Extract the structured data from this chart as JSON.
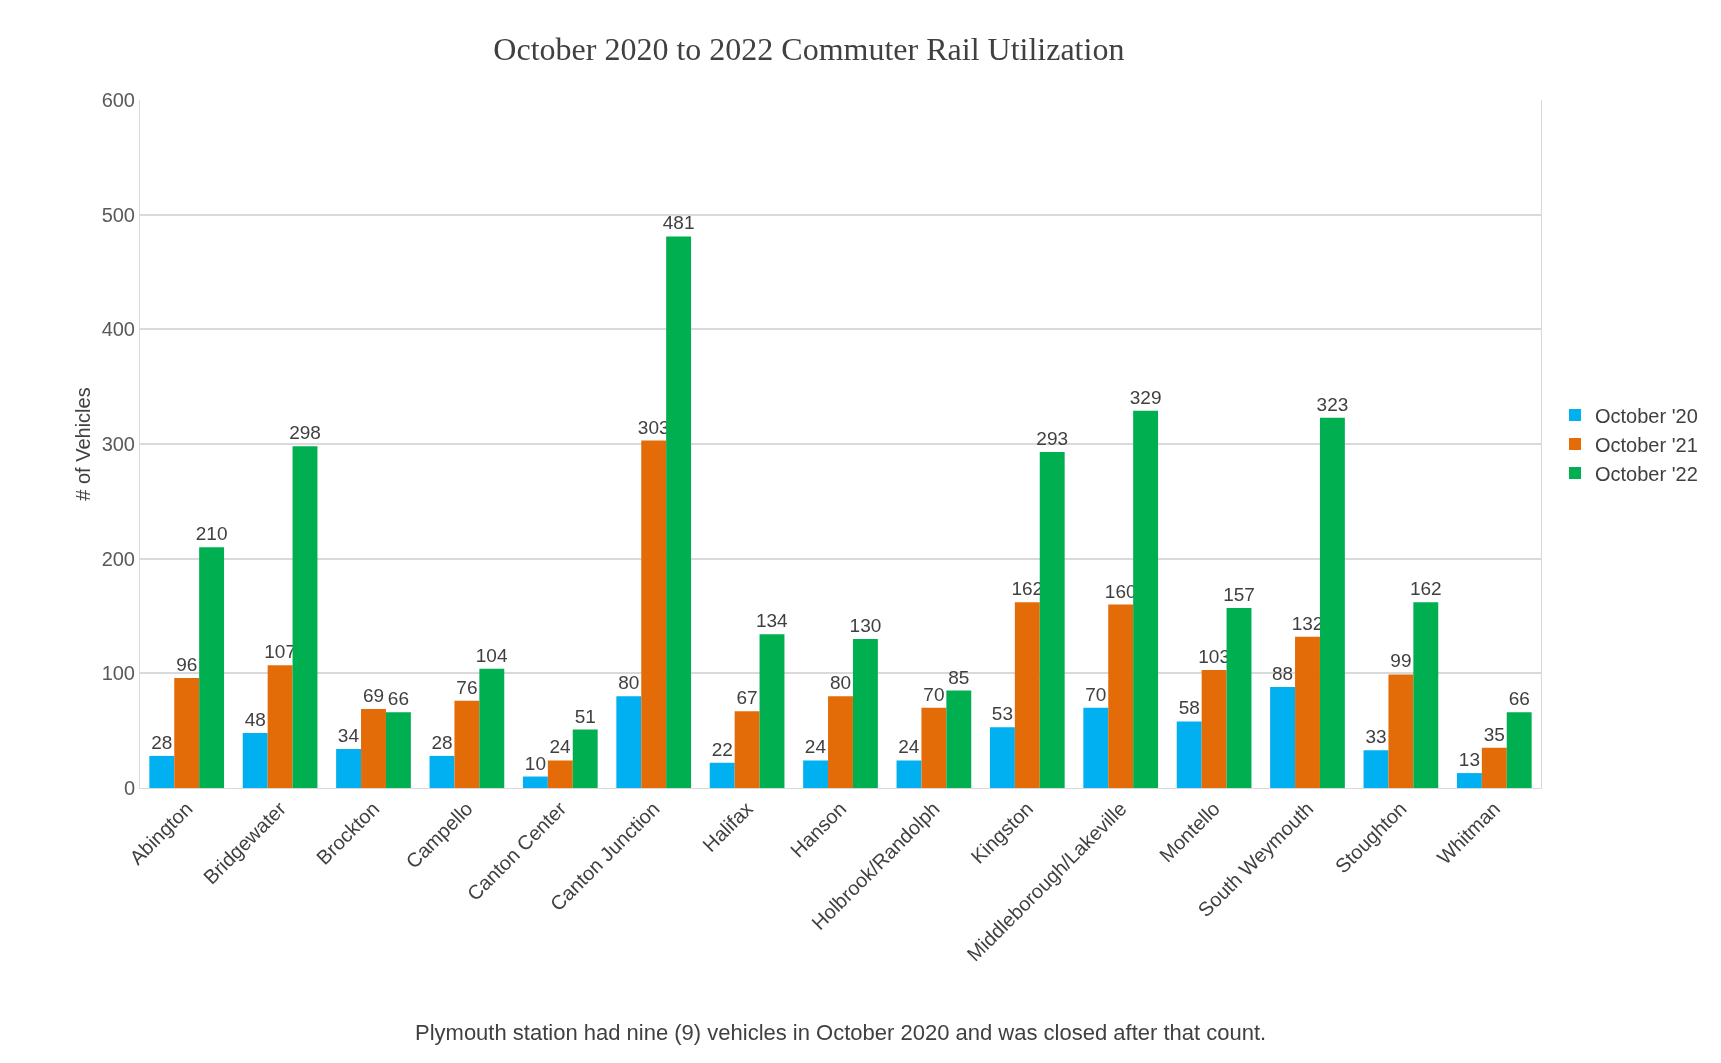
{
  "chart_data": {
    "type": "bar",
    "title": "October 2020 to 2022 Commuter Rail Utilization",
    "ylabel": "# of Vehicles",
    "categories": [
      "Abington",
      "Bridgewater",
      "Brockton",
      "Campello",
      "Canton Center",
      "Canton Junction",
      "Halifax",
      "Hanson",
      "Holbrook/Randolph",
      "Kingston",
      "Middleborough/Lakeville",
      "Montello",
      "South Weymouth",
      "Stoughton",
      "Whitman"
    ],
    "series": [
      {
        "name": "October '20",
        "color": "#00b0f0",
        "values": [
          28,
          48,
          34,
          28,
          10,
          80,
          22,
          24,
          24,
          53,
          70,
          58,
          88,
          33,
          13
        ]
      },
      {
        "name": "October '21",
        "color": "#e36c09",
        "values": [
          96,
          107,
          69,
          76,
          24,
          303,
          67,
          80,
          70,
          162,
          160,
          103,
          132,
          99,
          35
        ]
      },
      {
        "name": "October '22",
        "color": "#00b050",
        "values": [
          210,
          298,
          66,
          104,
          51,
          481,
          134,
          130,
          85,
          293,
          329,
          157,
          323,
          162,
          66
        ]
      }
    ],
    "ylim": [
      0,
      600
    ],
    "yticks": [
      0,
      100,
      200,
      300,
      400,
      500,
      600
    ],
    "grid": "y",
    "legend": "right",
    "data_labels": true,
    "annotations": [
      "Plymouth station had nine (9) vehicles in October 2020 and was closed after that count."
    ]
  }
}
